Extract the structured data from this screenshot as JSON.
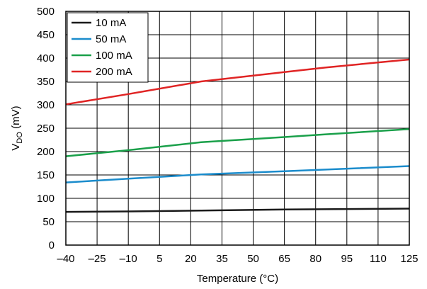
{
  "chart_data": {
    "type": "line",
    "xlabel": "Temperature (°C)",
    "ylabel_main": "V",
    "ylabel_sub": "DO",
    "ylabel_unit": " (mV)",
    "xlim": [
      -40,
      125
    ],
    "ylim": [
      0,
      500
    ],
    "x_ticks": [
      -40,
      -25,
      -10,
      5,
      20,
      35,
      50,
      65,
      80,
      95,
      110,
      125
    ],
    "x_tick_labels": [
      "–40",
      "–25",
      "–10",
      "5",
      "20",
      "35",
      "50",
      "65",
      "80",
      "95",
      "110",
      "125"
    ],
    "y_ticks": [
      0,
      50,
      100,
      150,
      200,
      250,
      300,
      350,
      400,
      450,
      500
    ],
    "y_tick_labels": [
      "0",
      "50",
      "100",
      "150",
      "200",
      "250",
      "300",
      "350",
      "400",
      "450",
      "500"
    ],
    "grid": true,
    "legend_position": "top-left",
    "series": [
      {
        "name": "10 mA",
        "color": "#1a1a1a",
        "x": [
          -40,
          -10,
          25,
          65,
          125
        ],
        "y": [
          71,
          72,
          74,
          76,
          78
        ]
      },
      {
        "name": "50 mA",
        "color": "#1b8ccc",
        "x": [
          -40,
          -10,
          25,
          65,
          125
        ],
        "y": [
          134,
          142,
          151,
          158,
          169
        ]
      },
      {
        "name": "100 mA",
        "color": "#1aa04a",
        "x": [
          -40,
          -10,
          25,
          65,
          85,
          125
        ],
        "y": [
          190,
          203,
          220,
          231,
          237,
          248
        ]
      },
      {
        "name": "200 mA",
        "color": "#e02424",
        "x": [
          -40,
          -10,
          25,
          65,
          85,
          125
        ],
        "y": [
          301,
          323,
          350,
          370,
          380,
          397
        ]
      }
    ]
  }
}
